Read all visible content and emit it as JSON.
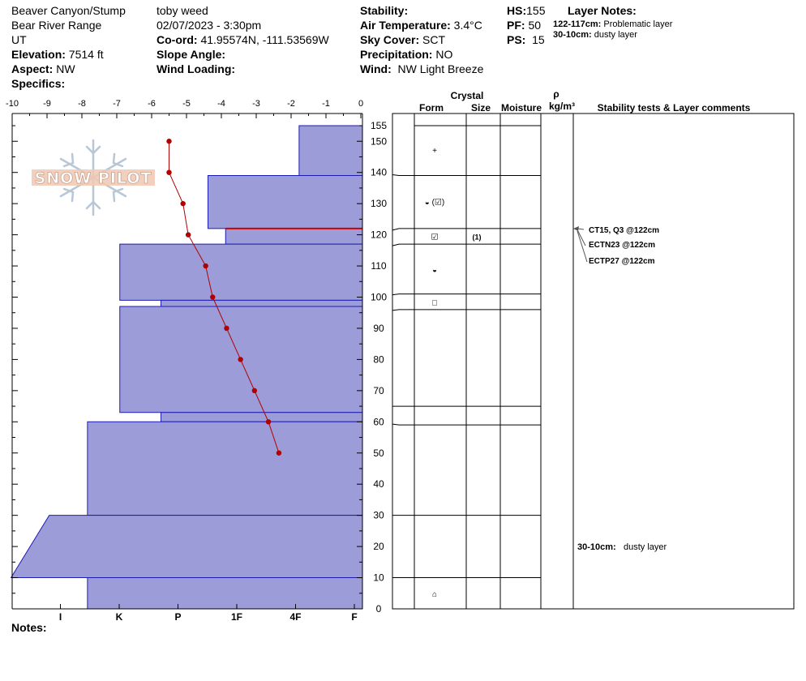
{
  "header": {
    "location": "Beaver Canyon/Stump",
    "range": "Bear River Range",
    "state": "UT",
    "elevation_label": "Elevation:",
    "elevation": "7514 ft",
    "aspect_label": "Aspect:",
    "aspect": "NW",
    "specifics_label": "Specifics:",
    "observer": "toby weed",
    "datetime": "02/07/2023 - 3:30pm",
    "coord_label": "Co-ord:",
    "coord": "41.95574N, -111.53569W",
    "slope_label": "Slope Angle:",
    "wind_loading_label": "Wind Loading:",
    "stability_label": "Stability:",
    "air_temp_label": "Air Temperature:",
    "air_temp": "3.4°C",
    "sky_label": "Sky Cover:",
    "sky": "SCT",
    "precip_label": "Precipitation:",
    "precip": "NO",
    "wind_label": "Wind:",
    "wind": "NW Light Breeze",
    "hs_label": "HS:",
    "hs": "155",
    "pf_label": "PF:",
    "pf": "50",
    "ps_label": "PS:",
    "ps": "15",
    "layer_notes_label": "Layer Notes:",
    "layer_notes": [
      {
        "range": "122-117cm:",
        "text": "Problematic layer"
      },
      {
        "range": "30-10cm:",
        "text": "dusty layer"
      }
    ]
  },
  "logo_text": "SNOW PILOT",
  "notes_label": "Notes:",
  "colors": {
    "hardness_fill": "#9c9cd8",
    "hardness_stroke": "#1c1cb0",
    "temp_line": "#b00000",
    "weak_layer": "#cc0000"
  },
  "chart_data": {
    "type": "snow-profile",
    "temperature_axis": {
      "ticks": [
        "-10",
        "-9",
        "-8",
        "-7",
        "-6",
        "-5",
        "-4",
        "-3",
        "-2",
        "-1",
        "0"
      ],
      "range": [
        -10,
        0
      ]
    },
    "depth_axis": {
      "ticks": [
        0,
        10,
        20,
        30,
        40,
        50,
        60,
        70,
        80,
        90,
        100,
        110,
        120,
        130,
        140,
        150,
        155
      ],
      "range": [
        0,
        155
      ]
    },
    "hardness_axis": {
      "labels": [
        "I",
        "K",
        "P",
        "1F",
        "4F",
        "F"
      ],
      "values": [
        5,
        4,
        3,
        2,
        1,
        0
      ],
      "range": [
        0,
        5.9
      ]
    },
    "hardness_profile": [
      {
        "top": 155,
        "bottom": 139,
        "hardness": 1.05
      },
      {
        "top": 139,
        "bottom": 122,
        "hardness": 2.6
      },
      {
        "top": 122,
        "bottom": 117,
        "hardness": 2.3
      },
      {
        "top": 117,
        "bottom": 99,
        "hardness": 4.1
      },
      {
        "top": 99,
        "bottom": 97,
        "hardness": 3.4
      },
      {
        "top": 97,
        "bottom": 63,
        "hardness": 4.1
      },
      {
        "top": 63,
        "bottom": 60,
        "hardness": 3.4
      },
      {
        "top": 60,
        "bottom": 30,
        "hardness": 4.65
      },
      {
        "top": 30,
        "bottom": 10,
        "hardness": [
          5.3,
          5.95
        ]
      },
      {
        "top": 10,
        "bottom": 0,
        "hardness": 4.65
      }
    ],
    "weak_layer_depth": 122,
    "temperature_profile": [
      {
        "depth": 150,
        "temp": -5.5
      },
      {
        "depth": 140,
        "temp": -5.5
      },
      {
        "depth": 130,
        "temp": -5.1
      },
      {
        "depth": 120,
        "temp": -4.95
      },
      {
        "depth": 110,
        "temp": -4.45
      },
      {
        "depth": 100,
        "temp": -4.25
      },
      {
        "depth": 90,
        "temp": -3.85
      },
      {
        "depth": 80,
        "temp": -3.45
      },
      {
        "depth": 70,
        "temp": -3.05
      },
      {
        "depth": 60,
        "temp": -2.65
      },
      {
        "depth": 50,
        "temp": -2.35
      }
    ]
  },
  "strat": {
    "col_crystal": "Crystal",
    "col_form": "Form",
    "col_size": "Size",
    "col_moisture": "Moisture",
    "col_rho": "ρ",
    "col_density_unit": "kg/m³",
    "col_stability": "Stability tests & Layer comments",
    "layers": [
      {
        "top": 155,
        "bottom": 139,
        "form": "+",
        "size": ""
      },
      {
        "top": 139,
        "bottom": 122,
        "form": "◒ (☑)",
        "size": ""
      },
      {
        "top": 122,
        "bottom": 117,
        "form": "☑",
        "size": "(1)"
      },
      {
        "top": 117,
        "bottom": 101,
        "form": "◒",
        "size": ""
      },
      {
        "top": 101,
        "bottom": 96,
        "form": "□",
        "size": ""
      },
      {
        "top": 96,
        "bottom": 65,
        "form": "",
        "size": ""
      },
      {
        "top": 65,
        "bottom": 59,
        "form": "",
        "size": ""
      },
      {
        "top": 59,
        "bottom": 30,
        "form": "",
        "size": ""
      },
      {
        "top": 30,
        "bottom": 10,
        "form": "",
        "size": ""
      },
      {
        "top": 10,
        "bottom": 0,
        "form": "⌂",
        "size": ""
      }
    ],
    "tests": [
      "CT15, Q3 @122cm",
      "ECTN23 @122cm",
      "ECTP27 @122cm"
    ],
    "comment_range": "30-10cm:",
    "comment_text": "dusty layer"
  }
}
